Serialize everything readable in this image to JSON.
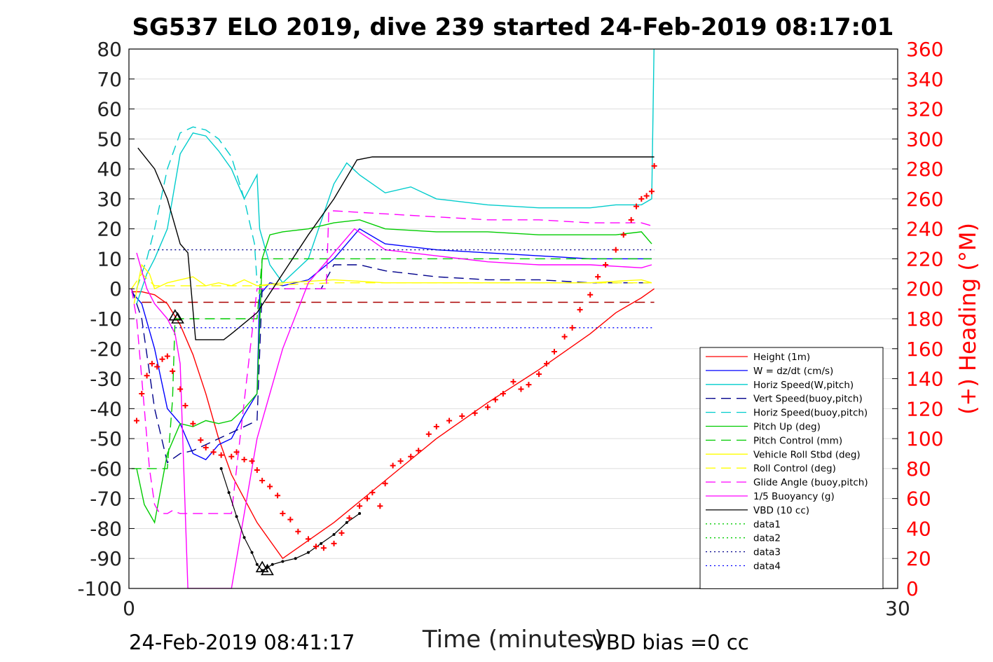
{
  "chart_data": {
    "type": "line",
    "title": "SG537 ELO 2019, dive 239 started 24-Feb-2019 08:17:01",
    "xlabel": "Time (minutes)",
    "ylabel": "",
    "y2label": "(+) Heading (°M)",
    "xlim": [
      0,
      30
    ],
    "ylim": [
      -100,
      80
    ],
    "y2lim": [
      0,
      360
    ],
    "xticks": [
      "0",
      "30"
    ],
    "yticks": [
      "80",
      "70",
      "60",
      "50",
      "40",
      "30",
      "20",
      "10",
      "0",
      "-10",
      "-20",
      "-30",
      "-40",
      "-50",
      "-60",
      "-70",
      "-80",
      "-90",
      "-100"
    ],
    "y2ticks": [
      "360",
      "340",
      "320",
      "300",
      "280",
      "260",
      "240",
      "220",
      "200",
      "180",
      "160",
      "140",
      "120",
      "100",
      "80",
      "60",
      "40",
      "20",
      "0"
    ],
    "grid": true,
    "legend_position": "bottom-right",
    "colors": {
      "heading": "#ff0000",
      "axis2": "#ff0000"
    },
    "series": [
      {
        "name": "Height (1m)",
        "color": "#ff0000",
        "dash": "solid",
        "x": [
          0.1,
          0.5,
          1.0,
          1.5,
          2.0,
          2.5,
          3.0,
          3.5,
          4.0,
          4.5,
          5.0,
          5.5,
          6.0,
          8.0,
          10.0,
          12.0,
          14.0,
          16.0,
          18.0,
          19.0,
          20.0,
          20.5
        ],
        "y": [
          -1,
          -1,
          -2,
          -5,
          -12,
          -22,
          -35,
          -50,
          -62,
          -70,
          -78,
          -84,
          -90,
          -78,
          -64,
          -50,
          -38,
          -27,
          -15,
          -8,
          -3,
          0
        ]
      },
      {
        "name": "W = dz/dt (cm/s)",
        "color": "#0000ff",
        "dash": "solid",
        "x": [
          0.1,
          0.5,
          1.0,
          1.5,
          2.0,
          2.5,
          3.0,
          3.5,
          4.0,
          4.5,
          5.0,
          5.1,
          5.5,
          6.0,
          7.0,
          8.0,
          9.0,
          10.0,
          12.0,
          14.0,
          16.0,
          18.0,
          19.0,
          20.0,
          20.4
        ],
        "y": [
          -1,
          -5,
          -20,
          -40,
          -45,
          -55,
          -57,
          -52,
          -50,
          -42,
          -35,
          -2,
          2,
          1,
          3,
          10,
          20,
          15,
          13,
          12,
          11,
          10,
          10,
          10,
          10
        ]
      },
      {
        "name": "Horiz Speed(W,pitch)",
        "color": "#00cccc",
        "dash": "solid",
        "x": [
          0.3,
          0.7,
          1.0,
          1.5,
          2.0,
          2.5,
          3.0,
          3.5,
          4.0,
          4.5,
          5.0,
          5.1,
          5.5,
          6.0,
          7.0,
          8.0,
          8.5,
          9.0,
          10.0,
          11.0,
          12.0,
          14.0,
          16.0,
          18.0,
          19.0,
          20.0,
          20.4,
          20.5
        ],
        "y": [
          -5,
          5,
          10,
          20,
          45,
          52,
          51,
          46,
          40,
          30,
          38,
          20,
          8,
          2,
          10,
          35,
          42,
          38,
          32,
          34,
          30,
          28,
          27,
          27,
          28,
          28,
          30,
          85
        ]
      },
      {
        "name": "Vert Speed(buoy,pitch)",
        "color": "#00008b",
        "dash": "dashed",
        "x": [
          0.1,
          0.5,
          1.0,
          1.5,
          2.0,
          2.5,
          3.0,
          4.0,
          5.0,
          5.2,
          6.0,
          7.0,
          7.5,
          8.0,
          9.0,
          10.0,
          12.0,
          14.0,
          16.0,
          18.0,
          20.0,
          20.4
        ],
        "y": [
          0,
          -10,
          -40,
          -58,
          -55,
          -54,
          -52,
          -48,
          -44,
          0,
          0,
          0,
          0,
          8,
          8,
          6,
          4,
          3,
          3,
          2,
          2,
          2
        ]
      },
      {
        "name": "Horiz Speed(buoy,pitch)",
        "color": "#00cccc",
        "dash": "dashed",
        "x": [
          0.3,
          0.7,
          1.0,
          1.5,
          2.0,
          2.5,
          3.0,
          3.5,
          4.0,
          4.5,
          4.9,
          5.0
        ],
        "y": [
          0,
          10,
          20,
          40,
          52,
          54,
          53,
          50,
          44,
          30,
          15,
          2
        ]
      },
      {
        "name": "Pitch Up (deg)",
        "color": "#00cc00",
        "dash": "solid",
        "x": [
          0.3,
          0.6,
          1.0,
          1.5,
          2.0,
          2.5,
          3.0,
          3.5,
          4.0,
          4.5,
          5.0,
          5.2,
          5.5,
          6.0,
          7.0,
          8.0,
          9.0,
          10.0,
          12.0,
          14.0,
          16.0,
          18.0,
          19.0,
          20.0,
          20.4
        ],
        "y": [
          -60,
          -72,
          -78,
          -55,
          -45,
          -46,
          -44,
          -45,
          -44,
          -40,
          -35,
          10,
          18,
          19,
          20,
          22,
          23,
          20,
          19,
          19,
          18,
          18,
          18,
          19,
          15
        ]
      },
      {
        "name": "Pitch Control (mm)",
        "color": "#00cc00",
        "dash": "dashed",
        "x": [
          0.1,
          1.5,
          1.7,
          1.8,
          3.0,
          4.5,
          5.0,
          5.2,
          6.0,
          10.0,
          14.0,
          18.0,
          20.4
        ],
        "y": [
          -60,
          -60,
          -37,
          -10,
          -10,
          -10,
          -10,
          10,
          10,
          10,
          10,
          10,
          10
        ]
      },
      {
        "name": "Vehicle Roll Stbd (deg)",
        "color": "#ffff00",
        "dash": "solid",
        "x": [
          0.2,
          0.5,
          0.8,
          1.0,
          1.5,
          2.0,
          2.5,
          3.0,
          3.5,
          4.0,
          4.5,
          5.0,
          6.0,
          8.0,
          10.0,
          12.0,
          14.0,
          16.0,
          18.0,
          20.0,
          20.4
        ],
        "y": [
          -5,
          8,
          5,
          0,
          2,
          3,
          4,
          1,
          2,
          1,
          3,
          1,
          2,
          3,
          2,
          2,
          2,
          2,
          2,
          3,
          2
        ]
      },
      {
        "name": "Roll Control (deg)",
        "color": "#ffff00",
        "dash": "dashed",
        "x": [
          0.1,
          0.5,
          1.0,
          2.0,
          5.0,
          8.0,
          12.0,
          16.0,
          20.4
        ],
        "y": [
          0,
          5,
          1,
          1,
          1,
          2,
          2,
          2,
          2
        ]
      },
      {
        "name": "Glide Angle (buoy,pitch)",
        "color": "#ff00ff",
        "dash": "dashed",
        "x": [
          0.1,
          0.3,
          0.5,
          0.8,
          1.0,
          1.2,
          1.5,
          1.7,
          2.0,
          3.0,
          4.0,
          5.0,
          7.0,
          7.7,
          7.8,
          8.0,
          10.0,
          12.0,
          14.0,
          16.0,
          18.0,
          20.0,
          20.4
        ],
        "y": [
          0,
          -10,
          -30,
          -60,
          -72,
          -75,
          -75,
          -74,
          -75,
          -75,
          -75,
          0,
          0,
          0,
          26,
          26,
          25,
          24,
          23,
          23,
          22,
          22,
          21
        ]
      },
      {
        "name": "1/5 Buoyancy (g)",
        "color": "#ff00ff",
        "dash": "solid",
        "x": [
          0.3,
          0.7,
          1.0,
          1.5,
          1.8,
          2.0,
          2.3,
          4.0,
          4.6,
          5.0,
          6.0,
          7.0,
          8.0,
          8.8,
          9.5,
          10.0,
          12.0,
          14.0,
          16.0,
          18.0,
          20.0,
          20.4
        ],
        "y": [
          12,
          0,
          -5,
          -10,
          -15,
          -25,
          -100,
          -100,
          -70,
          -50,
          -20,
          2,
          12,
          20,
          16,
          13,
          11,
          9,
          8,
          8,
          7,
          8
        ]
      },
      {
        "name": "VBD (10 cc)",
        "color": "#000000",
        "dash": "solid",
        "x": [
          0.35,
          1.0,
          1.5,
          2.0,
          2.3,
          2.6,
          3.7,
          4.0,
          5.0,
          6.0,
          7.0,
          8.0,
          8.9,
          9.5,
          12.0,
          15.0,
          18.0,
          20.5
        ],
        "y": [
          47,
          40,
          30,
          15,
          12,
          -17,
          -17,
          -15,
          -8,
          5,
          18,
          30,
          43,
          44,
          44,
          44,
          44,
          44
        ]
      },
      {
        "name": "data1",
        "color": "#00cc00",
        "dash": "dotted",
        "x": [],
        "y": []
      },
      {
        "name": "data2",
        "color": "#00cc00",
        "dash": "dotted",
        "x": [],
        "y": []
      },
      {
        "name": "data3",
        "color": "#00008b",
        "dash": "dotted",
        "x": [
          0.8,
          20.5
        ],
        "y": [
          13,
          13
        ]
      },
      {
        "name": "data4",
        "color": "#0000ff",
        "dash": "dotted",
        "x": [
          0.5,
          20.5
        ],
        "y": [
          -13,
          -13
        ]
      }
    ],
    "extra_lines": [
      {
        "color": "#aa0000",
        "dash": "dashed",
        "x": [
          0.5,
          20.5
        ],
        "y": [
          -4.5,
          -4.5
        ]
      }
    ],
    "heading": {
      "axis": "right",
      "marker": "+",
      "color": "#ff0000",
      "x": [
        0.3,
        0.5,
        0.7,
        0.9,
        1.1,
        1.3,
        1.5,
        1.7,
        2.0,
        2.2,
        2.5,
        2.8,
        3.0,
        3.3,
        3.6,
        4.0,
        4.2,
        4.5,
        4.8,
        5.0,
        5.2,
        5.5,
        5.8,
        6.0,
        6.3,
        6.6,
        7.0,
        7.3,
        7.6,
        8.0,
        8.3,
        8.6,
        9.0,
        9.3,
        9.5,
        9.8,
        10.0,
        10.3,
        10.6,
        11.0,
        11.3,
        11.7,
        12.0,
        12.5,
        13.0,
        13.5,
        14.0,
        14.3,
        14.6,
        15.0,
        15.3,
        15.6,
        16.0,
        16.3,
        16.6,
        17.0,
        17.3,
        17.6,
        18.0,
        18.3,
        18.6,
        19.0,
        19.3,
        19.6,
        19.8,
        20.0,
        20.2,
        20.4,
        20.5
      ],
      "y": [
        112,
        130,
        142,
        150,
        148,
        153,
        155,
        145,
        133,
        122,
        110,
        99,
        94,
        91,
        89,
        88,
        91,
        86,
        85,
        79,
        72,
        68,
        62,
        50,
        46,
        38,
        33,
        28,
        27,
        30,
        37,
        47,
        55,
        60,
        64,
        55,
        70,
        82,
        85,
        88,
        92,
        103,
        108,
        112,
        115,
        117,
        121,
        126,
        130,
        138,
        133,
        136,
        143,
        150,
        158,
        168,
        174,
        186,
        196,
        208,
        216,
        226,
        236,
        246,
        255,
        260,
        262,
        265,
        282
      ]
    },
    "depth_dots": {
      "color": "#000000",
      "x": [
        3.6,
        3.9,
        4.2,
        4.5,
        4.8,
        5.0,
        5.2,
        5.4,
        5.6,
        6.0,
        6.5,
        7.0,
        7.5,
        8.0,
        8.5,
        9.0
      ],
      "y": [
        -60,
        -68,
        -76,
        -83,
        -88,
        -92,
        -94,
        -93,
        -92,
        -91,
        -90,
        -88,
        -85,
        -82,
        -78,
        -75
      ]
    },
    "triangles": [
      {
        "x": 1.8,
        "y": -9
      },
      {
        "x": 1.9,
        "y": -10
      },
      {
        "x": 5.2,
        "y": -93
      },
      {
        "x": 5.4,
        "y": -94
      }
    ]
  },
  "footer": {
    "timestamp": "24-Feb-2019 08:41:17",
    "vbd_bias": "VBD bias =0 cc"
  }
}
